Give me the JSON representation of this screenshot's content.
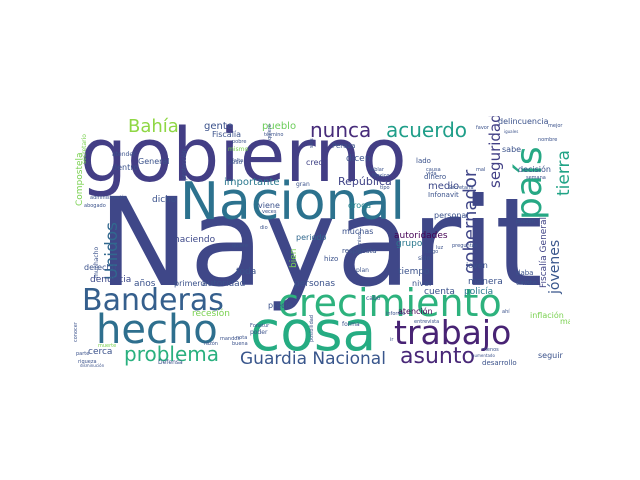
{
  "words": [
    {
      "text": "Nayarit",
      "color": "#3f4788"
    },
    {
      "text": "gobierno",
      "color": "#433e85"
    },
    {
      "text": "Nacional",
      "color": "#2c728e"
    },
    {
      "text": "cosa",
      "color": "#25ac82"
    },
    {
      "text": "crecimiento",
      "color": "#2db27d"
    },
    {
      "text": "hecho",
      "color": "#2e6f8e"
    },
    {
      "text": "Banderas",
      "color": "#355f8d"
    },
    {
      "text": "trabajo",
      "color": "#482374"
    },
    {
      "text": "país",
      "color": "#26a884"
    },
    {
      "text": "problema",
      "color": "#2ab07f"
    },
    {
      "text": "Guardia Nacional",
      "color": "#39568c"
    },
    {
      "text": "asunto",
      "color": "#482777"
    },
    {
      "text": "nunca",
      "color": "#472c7a"
    },
    {
      "text": "acuerdo",
      "color": "#1f9e89"
    },
    {
      "text": "Bahía",
      "color": "#8fd744"
    },
    {
      "text": "Unidos",
      "color": "#31688e"
    },
    {
      "text": "gobernador",
      "color": "#404688"
    },
    {
      "text": "seguridad",
      "color": "#424086"
    },
    {
      "text": "tierra",
      "color": "#20a386"
    },
    {
      "text": "jóvenes",
      "color": "#39568c"
    },
    {
      "text": "República",
      "color": "#414487"
    },
    {
      "text": "importante",
      "color": "#2a788e"
    },
    {
      "text": "medio",
      "color": "#3e4989"
    },
    {
      "text": "gente",
      "color": "#3b528b"
    },
    {
      "text": "pueblo",
      "color": "#6ccd5a"
    },
    {
      "text": "Fiscalía",
      "color": "#3b528b"
    },
    {
      "text": "creo",
      "color": "#414487"
    },
    {
      "text": "dicen",
      "color": "#3b528b"
    },
    {
      "text": "droga",
      "color": "#24868e"
    },
    {
      "text": "dicho",
      "color": "#3b528b"
    },
    {
      "text": "haciendo",
      "color": "#3e4989"
    },
    {
      "text": "periodo",
      "color": "#31688e"
    },
    {
      "text": "autoridades",
      "color": "#440154"
    },
    {
      "text": "muchas",
      "color": "#3b528b"
    },
    {
      "text": "grupo",
      "color": "#2a788e"
    },
    {
      "text": "tiempo",
      "color": "#3b528b"
    },
    {
      "text": "manera",
      "color": "#3b528b"
    },
    {
      "text": "joven",
      "color": "#3b528b"
    },
    {
      "text": "cuenta",
      "color": "#3b528b"
    },
    {
      "text": "policía",
      "color": "#2a788e"
    },
    {
      "text": "Fiscalía General",
      "color": "#414487"
    },
    {
      "text": "denuncia",
      "color": "#3e4989"
    },
    {
      "text": "autoridad",
      "color": "#3b528b"
    },
    {
      "text": "personas",
      "color": "#3b528b"
    },
    {
      "text": "atención",
      "color": "#440154"
    },
    {
      "text": "nivel",
      "color": "#3b528b"
    },
    {
      "text": "años",
      "color": "#3b528b"
    },
    {
      "text": "primero",
      "color": "#3b528b"
    },
    {
      "text": "toda",
      "color": "#3b528b"
    },
    {
      "text": "derecho",
      "color": "#3b528b"
    },
    {
      "text": "recesión",
      "color": "#7ad151"
    },
    {
      "text": "cerca",
      "color": "#3b528b"
    },
    {
      "text": "seguir",
      "color": "#3b528b"
    },
    {
      "text": "delincuencia",
      "color": "#3b528b"
    },
    {
      "text": "sabe",
      "color": "#3b528b"
    },
    {
      "text": "decisión",
      "color": "#3b528b"
    },
    {
      "text": "dinero",
      "color": "#3b528b"
    },
    {
      "text": "personal",
      "color": "#3b528b"
    },
    {
      "text": "bien",
      "color": "#7ad151"
    },
    {
      "text": "Compostela",
      "color": "#7ad151"
    },
    {
      "text": "General",
      "color": "#3b528b"
    },
    {
      "text": "dentro",
      "color": "#3b528b"
    },
    {
      "text": "viene",
      "color": "#3b528b"
    },
    {
      "text": "lado",
      "color": "#3b528b"
    },
    {
      "text": "desarrollo",
      "color": "#3b528b"
    },
    {
      "text": "inflación",
      "color": "#7ad151"
    },
    {
      "text": "mano",
      "color": "#7ad151"
    },
    {
      "text": "precio",
      "color": "#3b528b"
    },
    {
      "text": "daba",
      "color": "#3b528b"
    },
    {
      "text": "existe",
      "color": "#3b528b"
    },
    {
      "text": "Infonavit",
      "color": "#3b528b"
    },
    {
      "text": "Peraza",
      "color": "#3b528b"
    },
    {
      "text": "hizo",
      "color": "#3b528b"
    },
    {
      "text": "plan",
      "color": "#3b528b"
    },
    {
      "text": "respuesta",
      "color": "#3b528b"
    },
    {
      "text": "cabo",
      "color": "#3b528b"
    },
    {
      "text": "forma",
      "color": "#3b528b"
    },
    {
      "text": "poder",
      "color": "#3b528b"
    },
    {
      "text": "entrevista",
      "color": "#3b528b"
    },
    {
      "text": "informe",
      "color": "#3b528b"
    },
    {
      "text": "mismo",
      "color": "#7ad151"
    },
    {
      "text": "pobre",
      "color": "#3b528b"
    },
    {
      "text": "falta",
      "color": "#3b528b"
    },
    {
      "text": "peso",
      "color": "#3b528b"
    },
    {
      "text": "atender",
      "color": "#3b528b"
    },
    {
      "text": "gran",
      "color": "#3b528b"
    },
    {
      "text": "favor",
      "color": "#3b528b"
    },
    {
      "text": "mejor",
      "color": "#3b528b"
    },
    {
      "text": "buena",
      "color": "#3b528b"
    },
    {
      "text": "Defensa",
      "color": "#3b528b"
    },
    {
      "text": "riqueza",
      "color": "#3b528b"
    },
    {
      "text": "parte",
      "color": "#3b528b"
    },
    {
      "text": "conocer",
      "color": "#3b528b"
    },
    {
      "text": "secretario",
      "color": "#7ad151"
    },
    {
      "text": "protección",
      "color": "#3b528b"
    },
    {
      "text": "muchacho",
      "color": "#3b528b"
    },
    {
      "text": "quiero",
      "color": "#3b528b"
    },
    {
      "text": "abogado",
      "color": "#3b528b"
    },
    {
      "text": "administración",
      "color": "#3b528b"
    },
    {
      "text": "Secretaría",
      "color": "#3b528b"
    },
    {
      "text": "luz",
      "color": "#3b528b"
    },
    {
      "text": "sido",
      "color": "#3b528b"
    },
    {
      "text": "mal",
      "color": "#3b528b"
    },
    {
      "text": "nombre",
      "color": "#3b528b"
    },
    {
      "text": "preguntas",
      "color": "#3b528b"
    },
    {
      "text": "término",
      "color": "#3b528b"
    },
    {
      "text": "semana",
      "color": "#3b528b"
    },
    {
      "text": "menos",
      "color": "#3b528b"
    },
    {
      "text": "seis",
      "color": "#3b528b"
    },
    {
      "text": "dio",
      "color": "#3b528b"
    },
    {
      "text": "veces",
      "color": "#3b528b"
    },
    {
      "text": "disminución",
      "color": "#3b528b"
    },
    {
      "text": "muerte",
      "color": "#7ad151"
    },
    {
      "text": "razón",
      "color": "#3b528b"
    },
    {
      "text": "posibilidad",
      "color": "#3b528b"
    },
    {
      "text": "Fonatur",
      "color": "#3b528b"
    },
    {
      "text": "nota",
      "color": "#3b528b"
    },
    {
      "text": "aumentado",
      "color": "#3b528b"
    },
    {
      "text": "pueden",
      "color": "#3b528b"
    },
    {
      "text": "ir",
      "color": "#3b528b"
    },
    {
      "text": "quiere",
      "color": "#3b528b"
    },
    {
      "text": "vida",
      "color": "#3b528b"
    },
    {
      "text": "iguales",
      "color": "#3b528b"
    },
    {
      "text": "fuego",
      "color": "#3b528b"
    },
    {
      "text": "causa",
      "color": "#3b528b"
    },
    {
      "text": "ahí",
      "color": "#3b528b"
    },
    {
      "text": "hablar",
      "color": "#3b528b"
    },
    {
      "text": "permisos",
      "color": "#3b528b"
    },
    {
      "text": "tipo",
      "color": "#3b528b"
    },
    {
      "text": "mandos",
      "color": "#3b528b"
    },
    {
      "text": "Mexico",
      "color": "#3b528b"
    }
  ]
}
